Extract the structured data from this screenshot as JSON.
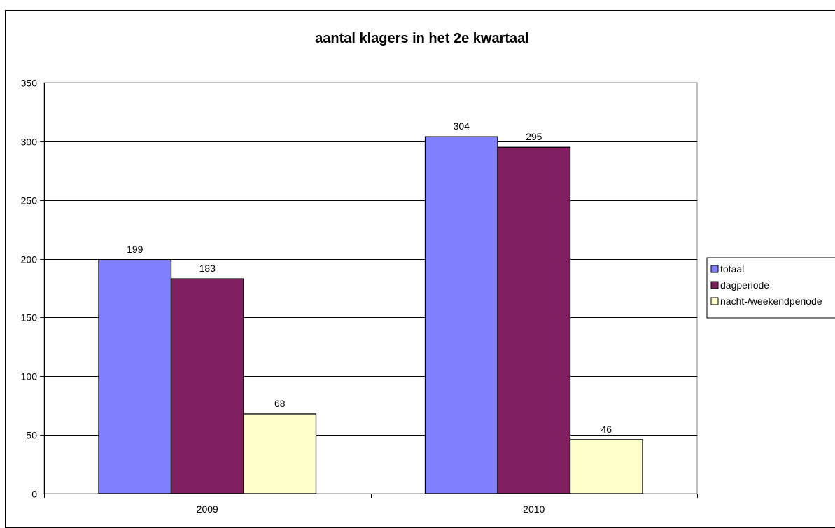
{
  "chart_data": {
    "type": "bar",
    "title": "aantal klagers in het 2e kwartaal",
    "xlabel": "",
    "ylabel": "",
    "categories": [
      "2009",
      "2010"
    ],
    "ylim": [
      0,
      350
    ],
    "yticks": [
      0,
      50,
      100,
      150,
      200,
      250,
      300,
      350
    ],
    "grid": true,
    "legend_position": "right",
    "series": [
      {
        "name": "totaal",
        "values": [
          199,
          304
        ],
        "color": "#8080FF"
      },
      {
        "name": "dagperiode",
        "values": [
          183,
          295
        ],
        "color": "#7F1F5F"
      },
      {
        "name": "nacht-/weekendperiode",
        "values": [
          68,
          46
        ],
        "color": "#FFFFCC"
      }
    ],
    "data_labels": true
  }
}
